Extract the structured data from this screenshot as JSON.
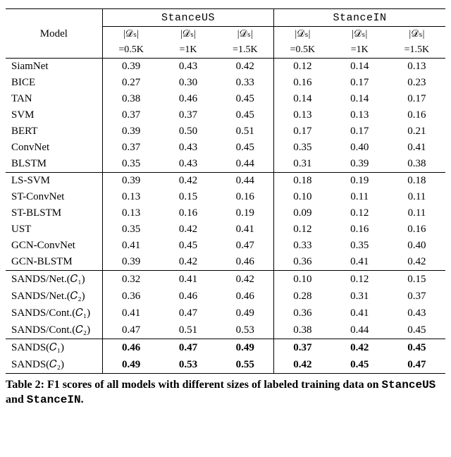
{
  "table": {
    "model_header": "Model",
    "group_headers": [
      "StanceUS",
      "StanceIN"
    ],
    "sub_headers_line1": [
      "|𝒟ₛ|",
      "|𝒟ₛ|",
      "|𝒟ₛ|",
      "|𝒟ₛ|",
      "|𝒟ₛ|",
      "|𝒟ₛ|"
    ],
    "sub_headers_line2": [
      "=0.5K",
      "=1K",
      "=1.5K",
      "=0.5K",
      "=1K",
      "=1.5K"
    ],
    "groups": [
      {
        "rows": [
          {
            "model": "SiamNet",
            "vals": [
              "0.39",
              "0.43",
              "0.42",
              "0.12",
              "0.14",
              "0.13"
            ],
            "bold": false
          },
          {
            "model": "BICE",
            "vals": [
              "0.27",
              "0.30",
              "0.33",
              "0.16",
              "0.17",
              "0.23"
            ],
            "bold": false
          },
          {
            "model": "TAN",
            "vals": [
              "0.38",
              "0.46",
              "0.45",
              "0.14",
              "0.14",
              "0.17"
            ],
            "bold": false
          },
          {
            "model": "SVM",
            "vals": [
              "0.37",
              "0.37",
              "0.45",
              "0.13",
              "0.13",
              "0.16"
            ],
            "bold": false
          },
          {
            "model": "BERT",
            "vals": [
              "0.39",
              "0.50",
              "0.51",
              "0.17",
              "0.17",
              "0.21"
            ],
            "bold": false
          },
          {
            "model": "ConvNet",
            "vals": [
              "0.37",
              "0.43",
              "0.45",
              "0.35",
              "0.40",
              "0.41"
            ],
            "bold": false
          },
          {
            "model": "BLSTM",
            "vals": [
              "0.35",
              "0.43",
              "0.44",
              "0.31",
              "0.39",
              "0.38"
            ],
            "bold": false
          }
        ]
      },
      {
        "rows": [
          {
            "model": "LS-SVM",
            "vals": [
              "0.39",
              "0.42",
              "0.44",
              "0.18",
              "0.19",
              "0.18"
            ],
            "bold": false
          },
          {
            "model": "ST-ConvNet",
            "vals": [
              "0.13",
              "0.15",
              "0.16",
              "0.10",
              "0.11",
              "0.11"
            ],
            "bold": false
          },
          {
            "model": "ST-BLSTM",
            "vals": [
              "0.13",
              "0.16",
              "0.19",
              "0.09",
              "0.12",
              "0.11"
            ],
            "bold": false
          },
          {
            "model": "UST",
            "vals": [
              "0.35",
              "0.42",
              "0.41",
              "0.12",
              "0.16",
              "0.16"
            ],
            "bold": false
          },
          {
            "model": "GCN-ConvNet",
            "vals": [
              "0.41",
              "0.45",
              "0.47",
              "0.33",
              "0.35",
              "0.40"
            ],
            "bold": false
          },
          {
            "model": "GCN-BLSTM",
            "vals": [
              "0.39",
              "0.42",
              "0.46",
              "0.36",
              "0.41",
              "0.42"
            ],
            "bold": false
          }
        ]
      },
      {
        "rows": [
          {
            "model": "SANDS/Net.(𝐶₁)",
            "vals": [
              "0.32",
              "0.41",
              "0.42",
              "0.10",
              "0.12",
              "0.15"
            ],
            "bold": false
          },
          {
            "model": "SANDS/Net.(𝐶₂)",
            "vals": [
              "0.36",
              "0.46",
              "0.46",
              "0.28",
              "0.31",
              "0.37"
            ],
            "bold": false
          },
          {
            "model": "SANDS/Cont.(𝐶₁)",
            "vals": [
              "0.41",
              "0.47",
              "0.49",
              "0.36",
              "0.41",
              "0.43"
            ],
            "bold": false
          },
          {
            "model": "SANDS/Cont.(𝐶₂)",
            "vals": [
              "0.47",
              "0.51",
              "0.53",
              "0.38",
              "0.44",
              "0.45"
            ],
            "bold": false
          }
        ]
      },
      {
        "rows": [
          {
            "model": "SANDS(𝐶₁)",
            "vals": [
              "0.46",
              "0.47",
              "0.49",
              "0.37",
              "0.42",
              "0.45"
            ],
            "bold": true
          },
          {
            "model": "SANDS(𝐶₂)",
            "vals": [
              "0.49",
              "0.53",
              "0.55",
              "0.42",
              "0.45",
              "0.47"
            ],
            "bold": true
          }
        ]
      }
    ],
    "caption_prefix": "Table 2: F1 scores of all models with different sizes of labeled training data on ",
    "caption_ds1": "StanceUS",
    "caption_and": " and ",
    "caption_ds2": "StanceIN",
    "caption_suffix": "."
  },
  "style": {
    "font_size_body": 15,
    "font_size_caption": 16,
    "col_widths_pct": [
      22,
      13,
      13,
      13,
      13,
      13,
      13
    ],
    "colors": {
      "text": "#000000",
      "background": "#ffffff",
      "rule": "#000000"
    }
  }
}
